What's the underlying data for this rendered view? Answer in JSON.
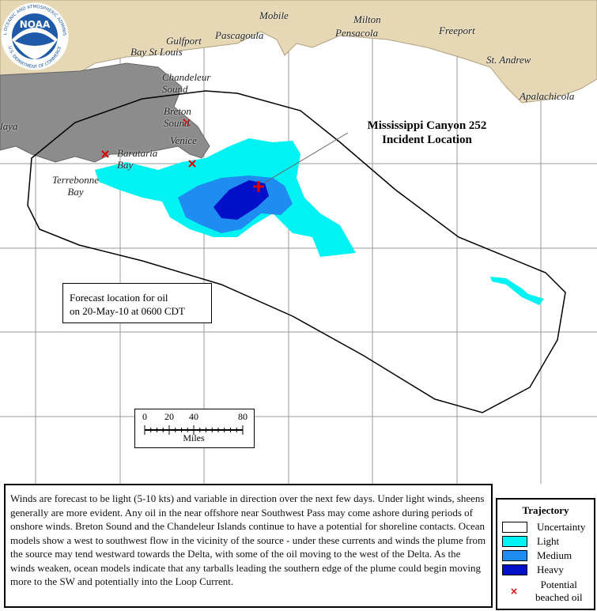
{
  "logo": {
    "name": "NOAA",
    "ring_top": "NATIONAL OCEANIC AND ATMOSPHERIC ADMINISTRATION",
    "ring_bottom": "U.S. DEPARTMENT OF COMMERCE"
  },
  "places": [
    "Mobile",
    "Milton",
    "Pensacola",
    "Freeport",
    "Gulfport",
    "Pascagoula",
    "Bay St Louis",
    "Chandeleur\nSound",
    "Breton\nSound",
    "Venice",
    "Barataria\nBay",
    "Terrebonne\nBay",
    "St. Andrew",
    "Apalachicola",
    "laya"
  ],
  "incident": "Mississippi Canyon 252\nIncident Location",
  "forecast": "Forecast location for oil\non 20-May-10 at 0600 CDT",
  "scale": {
    "ticks": [
      0,
      20,
      40,
      80
    ],
    "unit": "Miles"
  },
  "description": "Winds are forecast to be light (5-10 kts) and variable in direction over the next few days. Under light winds, sheens generally are more evident. Any oil in the near offshore near Southwest Pass may come ashore during periods of onshore winds. Breton Sound and the Chandeleur Islands continue to have a potential for shoreline contacts. Ocean models show a west to southwest flow in the vicinity of the source - under these currents and winds the plume from the source may tend westward towards the Delta, with some of the oil moving to the west of the Delta. As the winds weaken, ocean models indicate that any tarballs leading the southern edge of the plume could begin moving more to the SW and potentially into the Loop Current.",
  "legend": {
    "title": "Trajectory",
    "items": [
      {
        "label": "Uncertainty",
        "color": "#ffffff"
      },
      {
        "label": "Light",
        "color": "#00f2f2"
      },
      {
        "label": "Medium",
        "color": "#1e8cf0"
      },
      {
        "label": "Heavy",
        "color": "#0010c8"
      },
      {
        "label": "Potential\nbeached oil",
        "color": "#e00000"
      }
    ]
  }
}
